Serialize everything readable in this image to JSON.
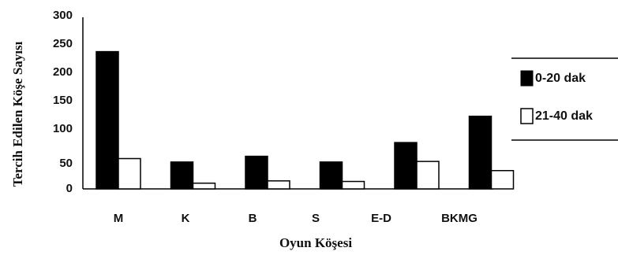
{
  "chart_data": {
    "type": "bar",
    "categories": [
      "M",
      "K",
      "B",
      "S",
      "E-D",
      "BKMG"
    ],
    "series": [
      {
        "name": "0-20 dak",
        "values": [
          240,
          47,
          57,
          47,
          81,
          127
        ],
        "color": "#000000"
      },
      {
        "name": "21-40 dak",
        "values": [
          53,
          10,
          14,
          13,
          48,
          32
        ],
        "color": "#ffffff"
      }
    ],
    "xlabel": "Oyun Köşesi",
    "ylabel": "Tercih Edilen Köşe Sayısı",
    "ylim": [
      0,
      300
    ],
    "yticks": [
      "0",
      "50",
      "100",
      "150",
      "200",
      "250",
      "300"
    ],
    "grid": false,
    "legend_position": "right"
  }
}
